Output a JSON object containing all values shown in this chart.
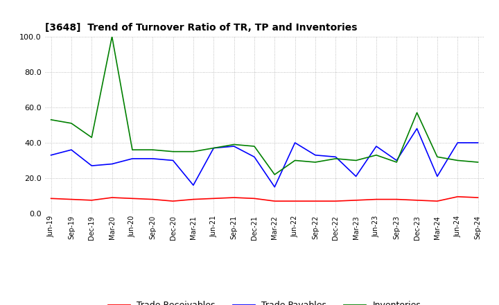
{
  "title": "[3648]  Trend of Turnover Ratio of TR, TP and Inventories",
  "xlabels": [
    "Jun-19",
    "Sep-19",
    "Dec-19",
    "Mar-20",
    "Jun-20",
    "Sep-20",
    "Dec-20",
    "Mar-21",
    "Jun-21",
    "Sep-21",
    "Dec-21",
    "Mar-22",
    "Jun-22",
    "Sep-22",
    "Dec-22",
    "Mar-23",
    "Jun-23",
    "Sep-23",
    "Dec-23",
    "Mar-24",
    "Jun-24",
    "Sep-24"
  ],
  "trade_receivables": [
    8.5,
    8.0,
    7.5,
    9.0,
    8.5,
    8.0,
    7.0,
    8.0,
    8.5,
    9.0,
    8.5,
    7.0,
    7.0,
    7.0,
    7.0,
    7.5,
    8.0,
    8.0,
    7.5,
    7.0,
    9.5,
    9.0
  ],
  "trade_payables": [
    33.0,
    36.0,
    27.0,
    28.0,
    31.0,
    31.0,
    30.0,
    16.0,
    37.0,
    38.0,
    32.0,
    15.0,
    40.0,
    33.0,
    32.0,
    21.0,
    38.0,
    30.0,
    48.0,
    21.0,
    40.0,
    40.0
  ],
  "inventories": [
    53.0,
    51.0,
    43.0,
    100.0,
    36.0,
    36.0,
    35.0,
    35.0,
    37.0,
    39.0,
    38.0,
    22.0,
    30.0,
    29.0,
    31.0,
    30.0,
    33.0,
    29.0,
    57.0,
    32.0,
    30.0,
    29.0
  ],
  "ylim": [
    0.0,
    100.0
  ],
  "yticks": [
    0.0,
    20.0,
    40.0,
    60.0,
    80.0,
    100.0
  ],
  "color_tr": "#ff0000",
  "color_tp": "#0000ff",
  "color_inv": "#008000",
  "legend_labels": [
    "Trade Receivables",
    "Trade Payables",
    "Inventories"
  ],
  "background_color": "#ffffff",
  "grid_color": "#999999"
}
